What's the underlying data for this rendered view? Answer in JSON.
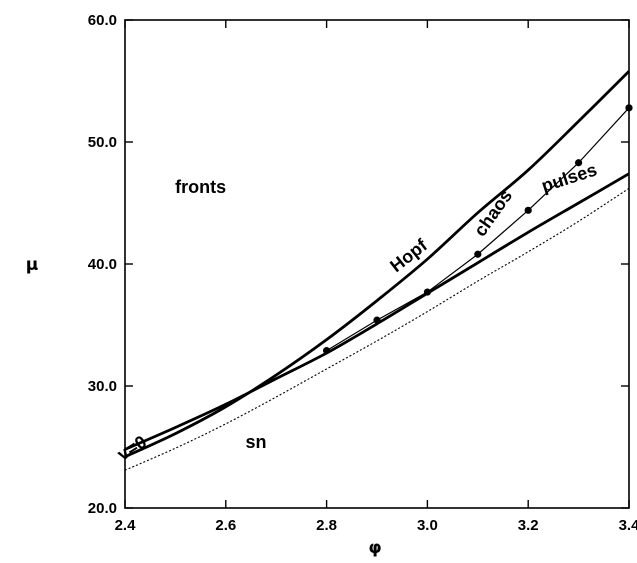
{
  "chart_data": {
    "type": "line",
    "title": "",
    "xlabel": "φ",
    "ylabel": "μ",
    "xlim": [
      2.4,
      3.4
    ],
    "ylim": [
      20.0,
      60.0
    ],
    "x_ticks": [
      "2.4",
      "2.6",
      "2.8",
      "3.0",
      "3.2",
      "3.4"
    ],
    "y_ticks": [
      "20.0",
      "30.0",
      "40.0",
      "50.0",
      "60.0"
    ],
    "grid": false,
    "series": [
      {
        "id": "hopf",
        "style": "thick",
        "x": [
          2.4,
          2.5,
          2.6,
          2.7,
          2.8,
          2.9,
          3.0,
          3.1,
          3.2,
          3.3,
          3.4
        ],
        "y": [
          24.2,
          26.1,
          28.3,
          30.9,
          33.8,
          37.0,
          40.4,
          44.2,
          47.7,
          51.7,
          55.8
        ]
      },
      {
        "id": "v0",
        "style": "thick",
        "x": [
          2.4,
          2.5,
          2.6,
          2.7,
          2.8,
          2.9,
          3.0,
          3.1,
          3.2,
          3.3,
          3.4
        ],
        "y": [
          24.8,
          26.6,
          28.5,
          30.6,
          32.7,
          35.1,
          37.6,
          40.1,
          42.6,
          45.0,
          47.4
        ]
      },
      {
        "id": "sn",
        "style": "dotted",
        "x": [
          2.4,
          2.5,
          2.6,
          2.7,
          2.8,
          2.9,
          3.0,
          3.1,
          3.2,
          3.3,
          3.4
        ],
        "y": [
          23.1,
          24.9,
          26.9,
          29.1,
          31.4,
          33.7,
          36.1,
          38.6,
          41.0,
          43.5,
          46.2
        ]
      },
      {
        "id": "chaos",
        "style": "thin-markers",
        "x": [
          2.8,
          2.9,
          3.0,
          3.1,
          3.2,
          3.3,
          3.4
        ],
        "y": [
          32.9,
          35.4,
          37.7,
          40.8,
          44.4,
          48.3,
          52.8
        ]
      }
    ],
    "annotations": [
      {
        "text": "fronts",
        "x": 2.55,
        "y": 45.8,
        "rotate": 0
      },
      {
        "text": "Hopf",
        "x": 2.97,
        "y": 40.3,
        "rotate": -38
      },
      {
        "text": "chaos",
        "x": 3.14,
        "y": 43.9,
        "rotate": -55
      },
      {
        "text": "pulses",
        "x": 3.285,
        "y": 46.6,
        "rotate": -18
      },
      {
        "text": "v=0",
        "x": 2.42,
        "y": 24.5,
        "rotate": -32
      },
      {
        "text": "sn",
        "x": 2.66,
        "y": 24.9,
        "rotate": 0
      }
    ]
  }
}
